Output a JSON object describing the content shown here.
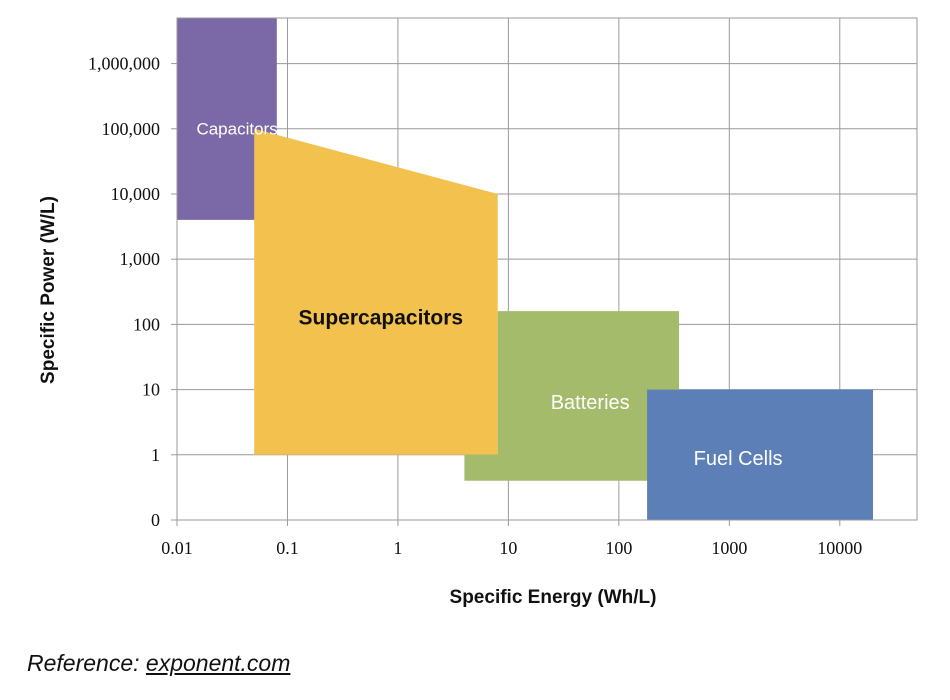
{
  "chart_data": {
    "type": "area",
    "title": "",
    "xlabel": "Specific Energy (Wh/L)",
    "ylabel": "Specific Power (W/L)",
    "x_scale": "log",
    "y_scale": "log",
    "xlim": [
      0.01,
      50000
    ],
    "ylim": [
      0.1,
      5000000
    ],
    "x_ticks": [
      {
        "value": 0.01,
        "label": "0.01"
      },
      {
        "value": 0.1,
        "label": "0.1"
      },
      {
        "value": 1,
        "label": "1"
      },
      {
        "value": 10,
        "label": "10"
      },
      {
        "value": 100,
        "label": "100"
      },
      {
        "value": 1000,
        "label": "1000"
      },
      {
        "value": 10000,
        "label": "10000"
      }
    ],
    "y_ticks": [
      {
        "value": 0.1,
        "label": "0"
      },
      {
        "value": 1,
        "label": "1"
      },
      {
        "value": 10,
        "label": "10"
      },
      {
        "value": 100,
        "label": "100"
      },
      {
        "value": 1000,
        "label": "1,000"
      },
      {
        "value": 10000,
        "label": "10,000"
      },
      {
        "value": 100000,
        "label": "100,000"
      },
      {
        "value": 1000000,
        "label": "1,000,000"
      }
    ],
    "grid": true,
    "regions": [
      {
        "name": "Capacitors",
        "color": "#7b68a6",
        "label_color": "#ffffff",
        "label_bold": false,
        "label_pos": [
          0.035,
          100000
        ],
        "polygon": [
          [
            0.01,
            5000000
          ],
          [
            0.08,
            5000000
          ],
          [
            0.08,
            4000
          ],
          [
            0.01,
            4000
          ]
        ]
      },
      {
        "name": "Supercapacitors",
        "color": "#f2c14e",
        "label_color": "#111111",
        "label_bold": true,
        "label_pos": [
          0.7,
          130
        ],
        "polygon": [
          [
            0.05,
            100000
          ],
          [
            8,
            10000
          ],
          [
            8,
            1
          ],
          [
            0.05,
            1
          ]
        ]
      },
      {
        "name": "Batteries",
        "color": "#a3bb6a",
        "label_color": "#ffffff",
        "label_bold": false,
        "label_pos": [
          55,
          6.5
        ],
        "polygon": [
          [
            8,
            160
          ],
          [
            350,
            160
          ],
          [
            350,
            0.4
          ],
          [
            4,
            0.4
          ],
          [
            4,
            1
          ],
          [
            8,
            1
          ]
        ]
      },
      {
        "name": "Fuel Cells",
        "color": "#5b7fb6",
        "label_color": "#ffffff",
        "label_bold": false,
        "label_pos": [
          1200,
          0.9
        ],
        "polygon": [
          [
            180,
            10
          ],
          [
            20000,
            10
          ],
          [
            20000,
            0.1
          ],
          [
            180,
            0.1
          ]
        ]
      }
    ]
  },
  "footer": {
    "prefix": "Reference: ",
    "link_text": "exponent.com"
  }
}
